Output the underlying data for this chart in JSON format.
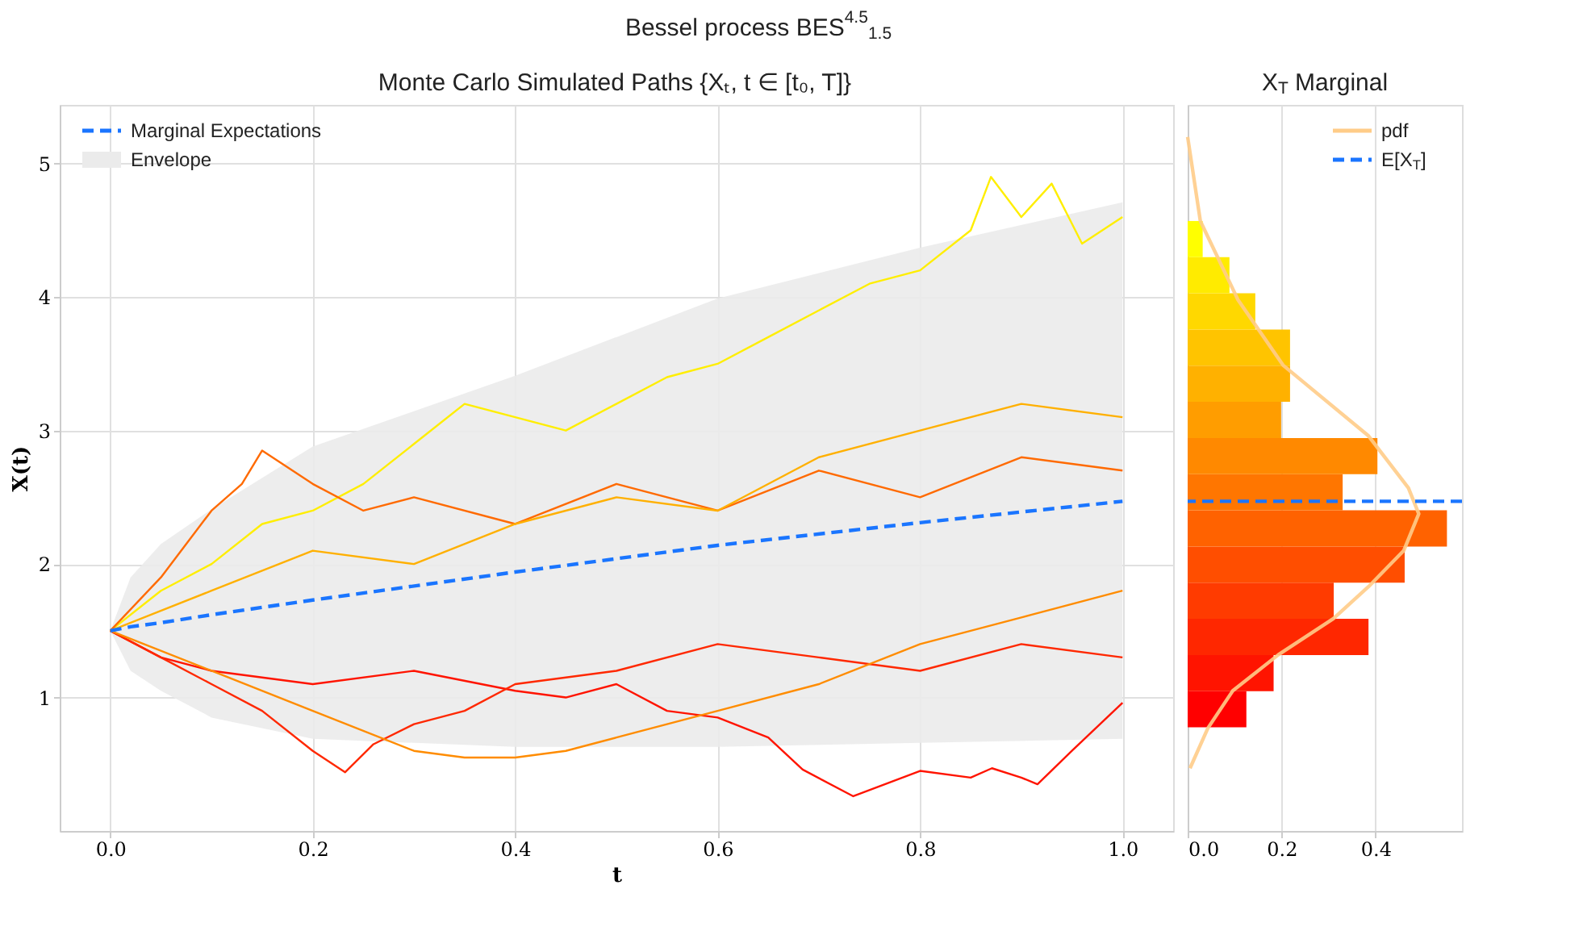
{
  "chart_data": [
    {
      "type": "line",
      "title": "Bessel process BES$^{4.5}$$_{1.5}$",
      "subtitle": "Monte Carlo Simulated Paths {Xₜ, t ∈ [t₀, T]}",
      "xlabel": "t",
      "ylabel": "X(t)",
      "xlim": [
        -0.05,
        1.05
      ],
      "xticks": [
        {
          "value": 0,
          "label": "0.0"
        },
        {
          "value": 0.2,
          "label": "0.2"
        },
        {
          "value": 0.4,
          "label": "0.4"
        },
        {
          "value": 0.6,
          "label": "0.6"
        },
        {
          "value": 0.8,
          "label": "0.8"
        },
        {
          "value": 1,
          "label": "1.0"
        }
      ],
      "ylim": [
        0,
        5.44
      ],
      "yticks": [
        1,
        2,
        3,
        4,
        5
      ],
      "grid": true,
      "legend": "top left",
      "annotations": [
        "Envelope"
      ],
      "series": [
        {
          "color": "#ffee00",
          "x": [
            0,
            0.05,
            0.1,
            0.15,
            0.2,
            0.25,
            0.3,
            0.35,
            0.4,
            0.45,
            0.5,
            0.55,
            0.6,
            0.65,
            0.7,
            0.75,
            0.8,
            0.85,
            0.87,
            0.9,
            0.93,
            0.96,
            1.0
          ],
          "values": [
            1.5,
            1.8,
            2.0,
            2.3,
            2.4,
            2.6,
            2.9,
            3.2,
            3.1,
            3.0,
            3.2,
            3.4,
            3.5,
            3.7,
            3.9,
            4.1,
            4.2,
            4.5,
            4.9,
            4.6,
            4.85,
            4.4,
            4.6
          ]
        },
        {
          "color": "#ff6a00",
          "x": [
            0,
            0.05,
            0.1,
            0.13,
            0.15,
            0.2,
            0.25,
            0.3,
            0.4,
            0.5,
            0.6,
            0.7,
            0.8,
            0.9,
            1.0
          ],
          "values": [
            1.5,
            1.9,
            2.4,
            2.6,
            2.85,
            2.6,
            2.4,
            2.5,
            2.3,
            2.6,
            2.4,
            2.7,
            2.5,
            2.8,
            2.7
          ]
        },
        {
          "color": "#ff1400",
          "x": [
            0,
            0.05,
            0.1,
            0.2,
            0.3,
            0.4,
            0.45,
            0.5,
            0.55,
            0.6,
            0.65,
            0.684,
            0.734,
            0.8,
            0.85,
            0.871,
            0.9,
            0.916,
            0.95,
            1.0
          ],
          "values": [
            1.5,
            1.3,
            1.2,
            1.1,
            1.2,
            1.05,
            1.0,
            1.1,
            0.9,
            0.85,
            0.7,
            0.46,
            0.26,
            0.45,
            0.4,
            0.47,
            0.4,
            0.35,
            0.6,
            0.96
          ]
        },
        {
          "color": "#ff2800",
          "x": [
            0,
            0.05,
            0.1,
            0.15,
            0.2,
            0.232,
            0.26,
            0.3,
            0.35,
            0.4,
            0.5,
            0.6,
            0.7,
            0.8,
            0.9,
            1.0
          ],
          "values": [
            1.5,
            1.3,
            1.1,
            0.9,
            0.6,
            0.44,
            0.65,
            0.8,
            0.9,
            1.1,
            1.2,
            1.4,
            1.3,
            1.2,
            1.4,
            1.3
          ]
        },
        {
          "color": "#ff8c00",
          "x": [
            0,
            0.1,
            0.2,
            0.3,
            0.35,
            0.4,
            0.45,
            0.5,
            0.6,
            0.7,
            0.8,
            0.9,
            1.0
          ],
          "values": [
            1.5,
            1.2,
            0.9,
            0.6,
            0.55,
            0.55,
            0.6,
            0.7,
            0.9,
            1.1,
            1.4,
            1.6,
            1.8
          ]
        },
        {
          "color": "#ffb000",
          "x": [
            0,
            0.1,
            0.2,
            0.3,
            0.4,
            0.5,
            0.6,
            0.7,
            0.8,
            0.9,
            1.0
          ],
          "values": [
            1.5,
            1.8,
            2.1,
            2.0,
            2.3,
            2.5,
            2.4,
            2.8,
            3.0,
            3.2,
            3.1
          ]
        },
        {
          "name": "Marginal Expectations",
          "color": "#1a75ff",
          "line_style": "dashed",
          "x": [
            0,
            0.02,
            0.05,
            0.1,
            0.2,
            0.4,
            0.6,
            0.8,
            1.0
          ],
          "values": [
            1.5,
            1.53,
            1.56,
            1.62,
            1.73,
            1.94,
            2.14,
            2.31,
            2.47
          ],
          "lower": [
            1.5,
            1.2,
            1.05,
            0.85,
            0.69,
            0.63,
            0.63,
            0.66,
            0.69
          ],
          "upper": [
            1.5,
            1.9,
            2.15,
            2.41,
            2.88,
            3.41,
            3.99,
            4.37,
            4.71
          ]
        }
      ]
    },
    {
      "type": "histogram",
      "title": "X$_{T}$ Marginal",
      "orientation": "horizontal",
      "tick_labels": "x",
      "grid": true,
      "legend": "top right",
      "xlim": [
        0,
        0.584
      ],
      "xticks": [
        {
          "value": 0,
          "label": "0.0"
        },
        {
          "value": 0.2,
          "label": "0.2"
        },
        {
          "value": 0.4,
          "label": "0.4"
        }
      ],
      "ylim": [
        0,
        5.44
      ],
      "bins": [
        0.776,
        1.047,
        1.318,
        1.589,
        1.86,
        2.131,
        2.402,
        2.673,
        2.944,
        3.215,
        3.486,
        3.757,
        4.028,
        4.299,
        4.57
      ],
      "values": [
        0.125,
        0.183,
        0.385,
        0.311,
        0.462,
        0.552,
        0.33,
        0.404,
        0.199,
        0.218,
        0.218,
        0.144,
        0.089,
        0.032
      ],
      "colors": [
        "#ff0000",
        "#ff1400",
        "#ff2700",
        "#ff3b00",
        "#ff4e00",
        "#ff6200",
        "#ff7600",
        "#ff8900",
        "#ff9d00",
        "#ffb100",
        "#ffc400",
        "#ffd800",
        "#ffeb00",
        "#ffff00"
      ],
      "series": [
        {
          "name": "pdf",
          "type": "line",
          "color": "#ffcc88",
          "x": [
            5.2,
            4.57,
            3.98,
            3.49,
            2.96,
            2.57,
            2.376,
            2.1,
            1.83,
            1.59,
            1.32,
            1.05,
            0.77,
            0.47
          ],
          "values": [
            0,
            0.027,
            0.107,
            0.203,
            0.385,
            0.47,
            0.492,
            0.46,
            0.385,
            0.31,
            0.193,
            0.096,
            0.043,
            0.005
          ]
        }
      ],
      "ref_lines": [
        {
          "axis": "y",
          "value": 2.47,
          "label": "E[X$_{T}$]",
          "color": "#1a75ff",
          "line_style": "dashed"
        }
      ]
    }
  ]
}
